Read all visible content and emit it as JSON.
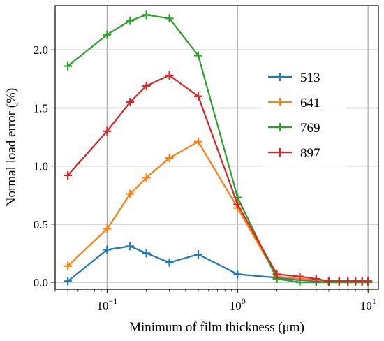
{
  "chart_data": {
    "type": "line",
    "title": "",
    "xlabel": "Minimum of film thickness (μm)",
    "ylabel": "Normal load error (%)",
    "xscale": "log",
    "xlim": [
      0.04,
      12
    ],
    "ylim": [
      -0.06,
      2.38
    ],
    "grid": true,
    "legend_position": "right",
    "x_ticks": [
      {
        "value": 0.1,
        "base": "10",
        "exp": "−1"
      },
      {
        "value": 1,
        "base": "10",
        "exp": "0"
      },
      {
        "value": 10,
        "base": "10",
        "exp": "1"
      }
    ],
    "y_ticks": [
      {
        "value": 0.0,
        "label": "0.0"
      },
      {
        "value": 0.5,
        "label": "0.5"
      },
      {
        "value": 1.0,
        "label": "1.0"
      },
      {
        "value": 1.5,
        "label": "1.5"
      },
      {
        "value": 2.0,
        "label": "2.0"
      }
    ],
    "series": [
      {
        "name": "513",
        "color": "#1f77b4",
        "x": [
          0.05,
          0.1,
          0.15,
          0.2,
          0.3,
          0.5,
          1,
          2,
          3,
          4,
          5,
          6,
          7,
          8,
          9,
          10
        ],
        "y": [
          0.01,
          0.28,
          0.31,
          0.25,
          0.17,
          0.24,
          0.07,
          0.04,
          0.02,
          0.01,
          0.01,
          0.01,
          0.01,
          0.01,
          0.01,
          0.01
        ]
      },
      {
        "name": "641",
        "color": "#ff7f0e",
        "x": [
          0.05,
          0.1,
          0.15,
          0.2,
          0.3,
          0.5,
          1,
          2,
          3,
          4,
          5,
          6,
          7,
          8,
          9,
          10
        ],
        "y": [
          0.14,
          0.46,
          0.76,
          0.9,
          1.07,
          1.21,
          0.64,
          0.05,
          0.03,
          0.02,
          0.01,
          0.01,
          0.01,
          0.01,
          0.01,
          0.01
        ]
      },
      {
        "name": "769",
        "color": "#2ca02c",
        "x": [
          0.05,
          0.1,
          0.15,
          0.2,
          0.3,
          0.5,
          1,
          2,
          3,
          4,
          5,
          6,
          7,
          8,
          9,
          10
        ],
        "y": [
          1.86,
          2.13,
          2.25,
          2.3,
          2.27,
          1.95,
          0.73,
          0.03,
          0.0,
          0.0,
          0.0,
          0.0,
          0.0,
          0.0,
          0.0,
          0.0
        ]
      },
      {
        "name": "897",
        "color": "#d62728",
        "x": [
          0.05,
          0.1,
          0.15,
          0.2,
          0.3,
          0.5,
          1,
          2,
          3,
          4,
          5,
          6,
          7,
          8,
          9,
          10
        ],
        "y": [
          0.92,
          1.3,
          1.55,
          1.69,
          1.78,
          1.6,
          0.67,
          0.07,
          0.05,
          0.03,
          0.01,
          0.01,
          0.01,
          0.01,
          0.01,
          0.01
        ]
      }
    ]
  }
}
